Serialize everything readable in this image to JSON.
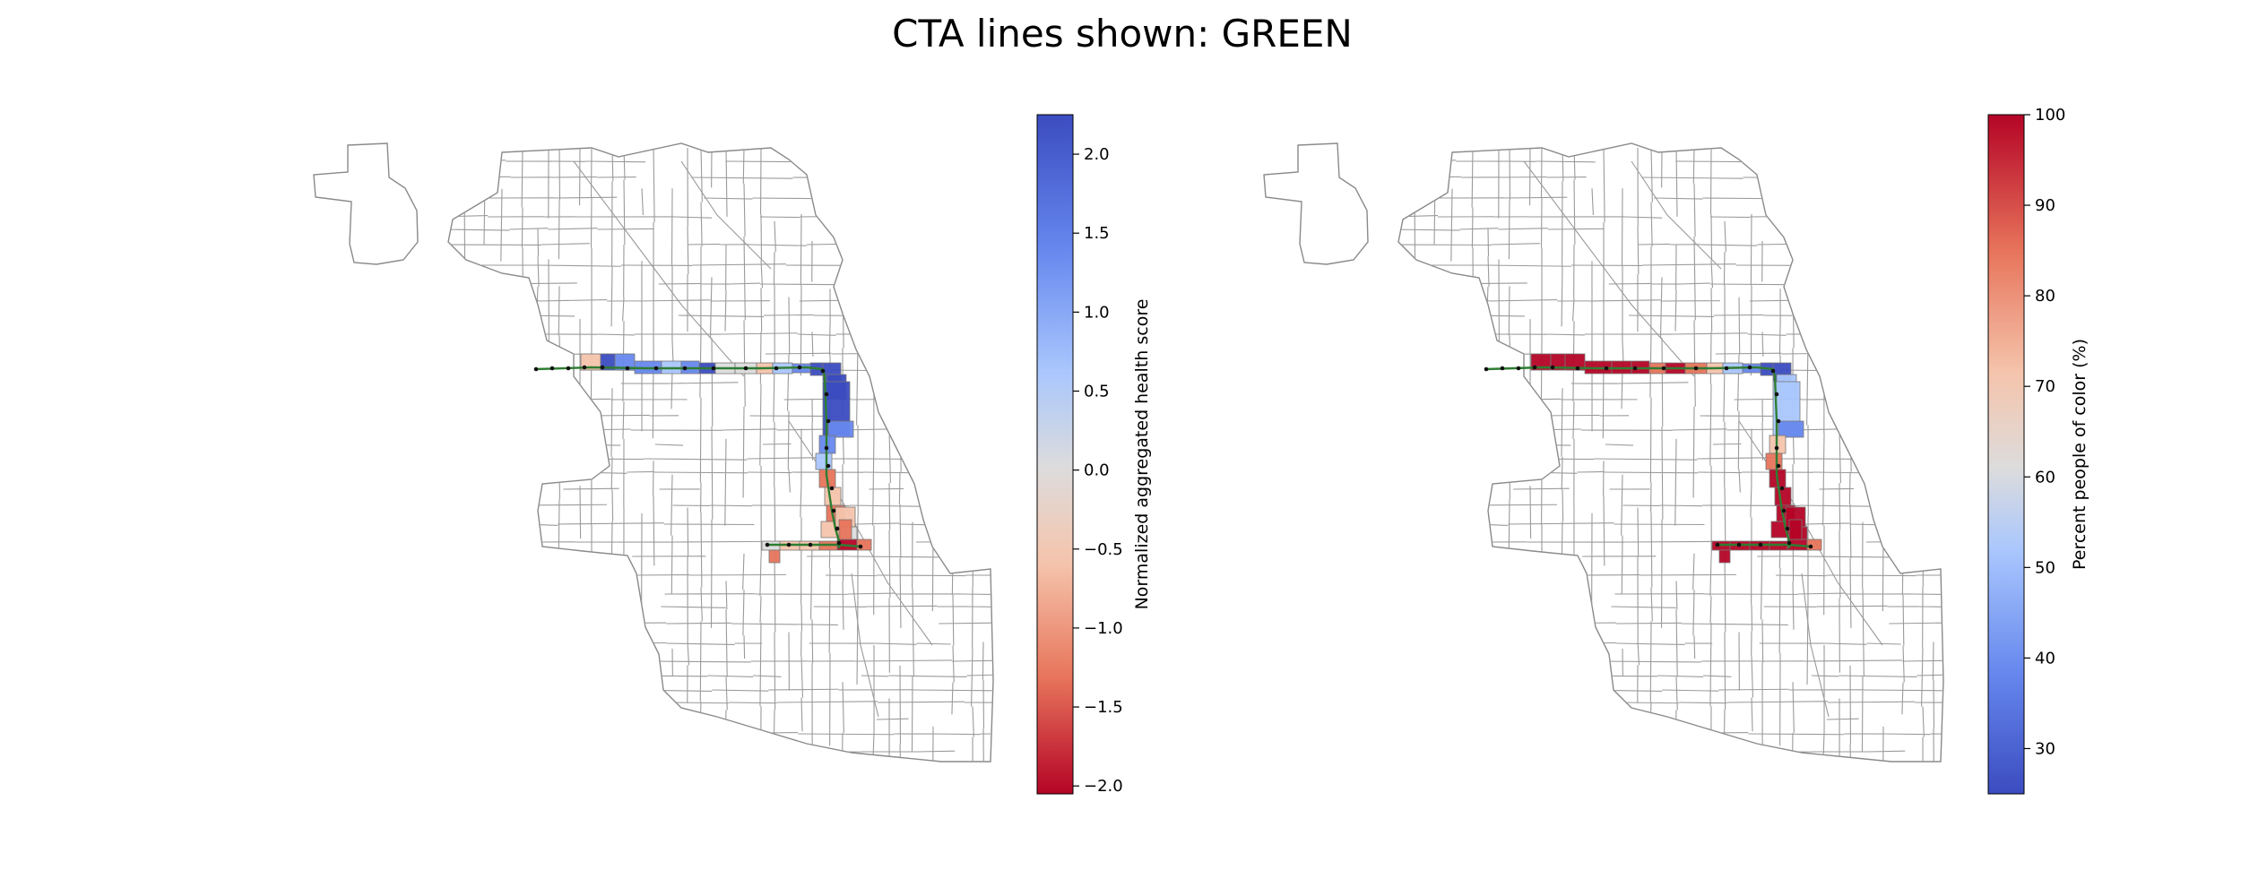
{
  "figure": {
    "title": "CTA lines shown: GREEN"
  },
  "line_color": "#2e7d32",
  "panels": [
    {
      "id": "health",
      "colorbar": {
        "label": "Normalized aggregated health score",
        "min": -2.05,
        "max": 2.25,
        "ticks": [
          "−2.0",
          "−1.5",
          "−1.0",
          "−0.5",
          "0.0",
          "0.5",
          "1.0",
          "1.5",
          "2.0"
        ],
        "tick_values": [
          -2.0,
          -1.5,
          -1.0,
          -0.5,
          0.0,
          0.5,
          1.0,
          1.5,
          2.0
        ],
        "colormap": "coolwarm_r",
        "colors": [
          "#b40426",
          "#e7745b",
          "#f5c4ac",
          "#dddcdc",
          "#aac7fd",
          "#6788ee",
          "#3b4cc0"
        ]
      }
    },
    {
      "id": "poc",
      "colorbar": {
        "label": "Percent people of color (%)",
        "min": 25,
        "max": 100,
        "ticks": [
          "30",
          "40",
          "50",
          "60",
          "70",
          "80",
          "90",
          "100"
        ],
        "tick_values": [
          30,
          40,
          50,
          60,
          70,
          80,
          90,
          100
        ],
        "colormap": "coolwarm",
        "colors": [
          "#3b4cc0",
          "#6788ee",
          "#aac7fd",
          "#dddcdc",
          "#f5c4ac",
          "#e7745b",
          "#b40426"
        ]
      }
    }
  ]
}
